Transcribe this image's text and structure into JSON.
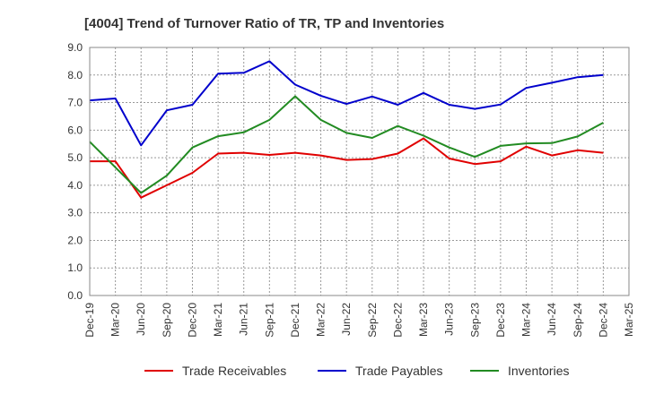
{
  "chart_data": {
    "type": "line",
    "title": "[4004]  Trend of Turnover Ratio of TR, TP and Inventories",
    "xlabel": "",
    "ylabel": "",
    "ylim": [
      0,
      9
    ],
    "yticks": [
      "0.0",
      "1.0",
      "2.0",
      "3.0",
      "4.0",
      "5.0",
      "6.0",
      "7.0",
      "8.0",
      "9.0"
    ],
    "categories": [
      "Dec-19",
      "Mar-20",
      "Jun-20",
      "Sep-20",
      "Dec-20",
      "Mar-21",
      "Jun-21",
      "Sep-21",
      "Dec-21",
      "Mar-22",
      "Jun-22",
      "Sep-22",
      "Dec-22",
      "Mar-23",
      "Jun-23",
      "Sep-23",
      "Dec-23",
      "Mar-24",
      "Jun-24",
      "Sep-24",
      "Dec-24",
      "Mar-25"
    ],
    "grid": true,
    "legend_position": "bottom",
    "series": [
      {
        "name": "Trade Receivables",
        "color": "#e00000",
        "values": [
          4.87,
          4.87,
          3.55,
          4.0,
          4.45,
          5.15,
          5.18,
          5.1,
          5.18,
          5.08,
          4.92,
          4.95,
          5.15,
          5.7,
          4.97,
          4.77,
          4.87,
          5.4,
          5.08,
          5.27,
          5.18,
          null
        ]
      },
      {
        "name": "Trade Payables",
        "color": "#0000cc",
        "values": [
          7.08,
          7.15,
          5.45,
          6.72,
          6.92,
          8.05,
          8.08,
          8.5,
          7.65,
          7.25,
          6.95,
          7.22,
          6.92,
          7.35,
          6.92,
          6.77,
          6.93,
          7.53,
          7.72,
          7.92,
          8.0,
          null
        ]
      },
      {
        "name": "Inventories",
        "color": "#228b22",
        "values": [
          5.58,
          4.65,
          3.72,
          4.35,
          5.37,
          5.78,
          5.92,
          6.37,
          7.23,
          6.37,
          5.9,
          5.72,
          6.15,
          5.8,
          5.37,
          5.03,
          5.43,
          5.52,
          5.53,
          5.77,
          6.27,
          null
        ]
      }
    ]
  }
}
